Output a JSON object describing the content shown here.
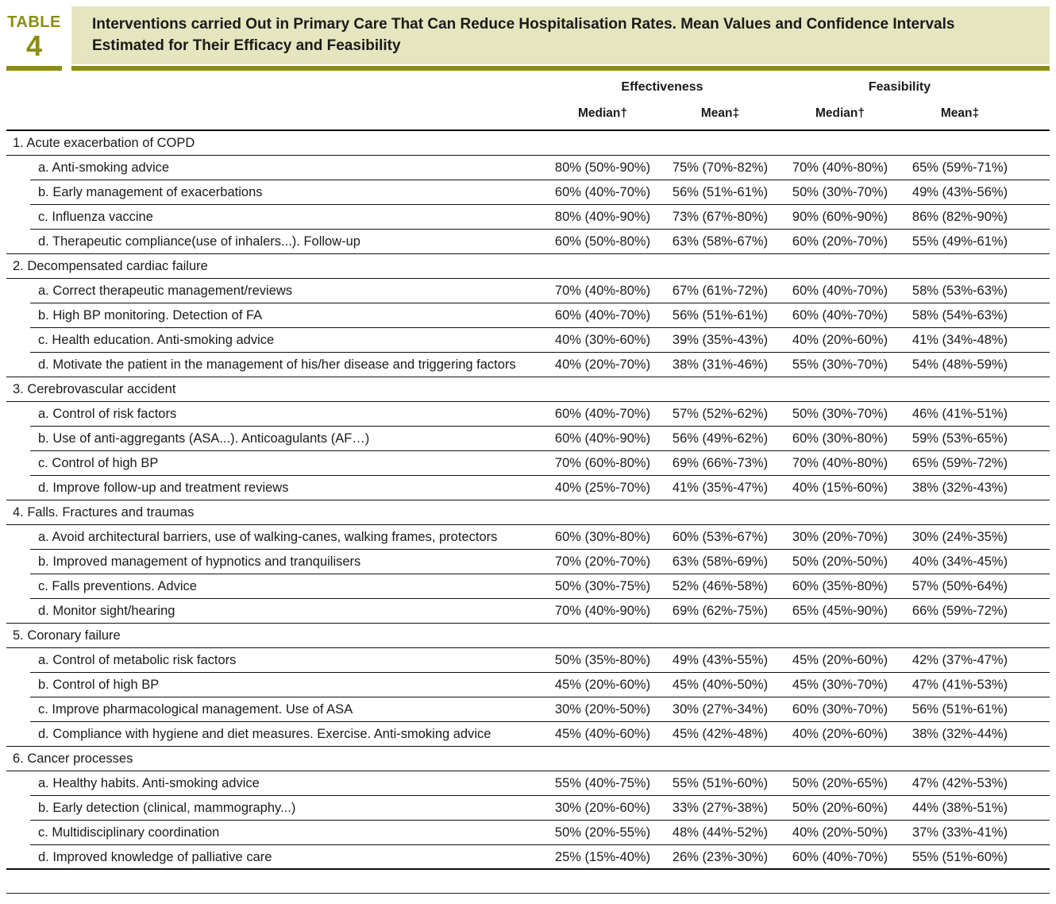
{
  "badge": {
    "word": "TABLE",
    "number": "4"
  },
  "title": "Interventions carried Out in Primary Care That Can Reduce Hospitalisation Rates. Mean Values and Confidence Intervals Estimated for Their Efficacy and Feasibility",
  "colors": {
    "olive": "#8c8c10",
    "band": "#e5e5bf"
  },
  "columns": {
    "group_effectiveness": "Effectiveness",
    "group_feasibility": "Feasibility",
    "eff_median": "Median†",
    "eff_mean": "Mean‡",
    "fea_median": "Median†",
    "fea_mean": "Mean‡"
  },
  "sections": [
    {
      "title": "1. Acute exacerbation of COPD",
      "items": [
        {
          "label": "a. Anti-smoking advice",
          "values": [
            "80% (50%-90%)",
            "75% (70%-82%)",
            "70% (40%-80%)",
            "65% (59%-71%)"
          ]
        },
        {
          "label": "b. Early management of exacerbations",
          "values": [
            "60% (40%-70%)",
            "56% (51%-61%)",
            "50% (30%-70%)",
            "49% (43%-56%)"
          ]
        },
        {
          "label": "c. Influenza vaccine",
          "values": [
            "80% (40%-90%)",
            "73% (67%-80%)",
            "90% (60%-90%)",
            "86% (82%-90%)"
          ]
        },
        {
          "label": "d. Therapeutic compliance(use of inhalers...). Follow-up",
          "values": [
            "60% (50%-80%)",
            "63% (58%-67%)",
            "60% (20%-70%)",
            "55% (49%-61%)"
          ]
        }
      ]
    },
    {
      "title": "2. Decompensated cardiac failure",
      "items": [
        {
          "label": "a. Correct therapeutic management/reviews",
          "values": [
            "70% (40%-80%)",
            "67% (61%-72%)",
            "60% (40%-70%)",
            "58% (53%-63%)"
          ]
        },
        {
          "label": "b. High BP monitoring. Detection of FA",
          "values": [
            "60% (40%-70%)",
            "56% (51%-61%)",
            "60% (40%-70%)",
            "58% (54%-63%)"
          ]
        },
        {
          "label": "c. Health education. Anti-smoking advice",
          "values": [
            "40% (30%-60%)",
            "39% (35%-43%)",
            "40% (20%-60%)",
            "41% (34%-48%)"
          ]
        },
        {
          "label": "d. Motivate the patient in the management of his/her disease and triggering factors",
          "values": [
            "40% (20%-70%)",
            "38% (31%-46%)",
            "55% (30%-70%)",
            "54% (48%-59%)"
          ]
        }
      ]
    },
    {
      "title": "3. Cerebrovascular accident",
      "items": [
        {
          "label": "a. Control of risk factors",
          "values": [
            "60% (40%-70%)",
            "57% (52%-62%)",
            "50% (30%-70%)",
            "46% (41%-51%)"
          ]
        },
        {
          "label": "b. Use of anti-aggregants (ASA...). Anticoagulants (AF…)",
          "values": [
            "60% (40%-90%)",
            "56% (49%-62%)",
            "60% (30%-80%)",
            "59% (53%-65%)"
          ]
        },
        {
          "label": "c. Control of high BP",
          "values": [
            "70% (60%-80%)",
            "69% (66%-73%)",
            "70% (40%-80%)",
            "65% (59%-72%)"
          ]
        },
        {
          "label": "d. Improve follow-up and treatment reviews",
          "values": [
            "40% (25%-70%)",
            "41% (35%-47%)",
            "40% (15%-60%)",
            "38% (32%-43%)"
          ]
        }
      ]
    },
    {
      "title": "4. Falls. Fractures and traumas",
      "items": [
        {
          "label": "a. Avoid architectural barriers, use of walking-canes, walking frames, protectors",
          "values": [
            "60% (30%-80%)",
            "60% (53%-67%)",
            "30% (20%-70%)",
            "30% (24%-35%)"
          ]
        },
        {
          "label": "b. Improved management of hypnotics and tranquilisers",
          "values": [
            "70% (20%-70%)",
            "63% (58%-69%)",
            "50% (20%-50%)",
            "40% (34%-45%)"
          ]
        },
        {
          "label": "c. Falls preventions. Advice",
          "values": [
            "50% (30%-75%)",
            "52% (46%-58%)",
            "60% (35%-80%)",
            "57% (50%-64%)"
          ]
        },
        {
          "label": "d. Monitor sight/hearing",
          "values": [
            "70% (40%-90%)",
            "69% (62%-75%)",
            "65% (45%-90%)",
            "66% (59%-72%)"
          ]
        }
      ]
    },
    {
      "title": "5. Coronary failure",
      "items": [
        {
          "label": "a. Control of metabolic risk factors",
          "values": [
            "50% (35%-80%)",
            "49% (43%-55%)",
            "45% (20%-60%)",
            "42% (37%-47%)"
          ]
        },
        {
          "label": "b. Control of high BP",
          "values": [
            "45% (20%-60%)",
            "45% (40%-50%)",
            "45% (30%-70%)",
            "47% (41%-53%)"
          ]
        },
        {
          "label": "c. Improve pharmacological management. Use of ASA",
          "values": [
            "30% (20%-50%)",
            "30% (27%-34%)",
            "60% (30%-70%)",
            "56% (51%-61%)"
          ]
        },
        {
          "label": "d. Compliance with hygiene and diet measures. Exercise. Anti-smoking advice",
          "values": [
            "45% (40%-60%)",
            "45% (42%-48%)",
            "40% (20%-60%)",
            "38% (32%-44%)"
          ]
        }
      ]
    },
    {
      "title": "6. Cancer processes",
      "items": [
        {
          "label": "a. Healthy habits. Anti-smoking advice",
          "values": [
            "55% (40%-75%)",
            "55% (51%-60%)",
            "50% (20%-65%)",
            "47% (42%-53%)"
          ]
        },
        {
          "label": "b. Early detection (clinical, mammography...)",
          "values": [
            "30% (20%-60%)",
            "33% (27%-38%)",
            "50% (20%-60%)",
            "44% (38%-51%)"
          ]
        },
        {
          "label": "c. Multidisciplinary coordination",
          "values": [
            "50% (20%-55%)",
            "48% (44%-52%)",
            "40% (20%-50%)",
            "37% (33%-41%)"
          ]
        },
        {
          "label": "d. Improved knowledge of palliative care",
          "values": [
            "25% (15%-40%)",
            "26% (23%-30%)",
            "60% (40%-70%)",
            "55% (51%-60%)"
          ]
        }
      ]
    }
  ]
}
